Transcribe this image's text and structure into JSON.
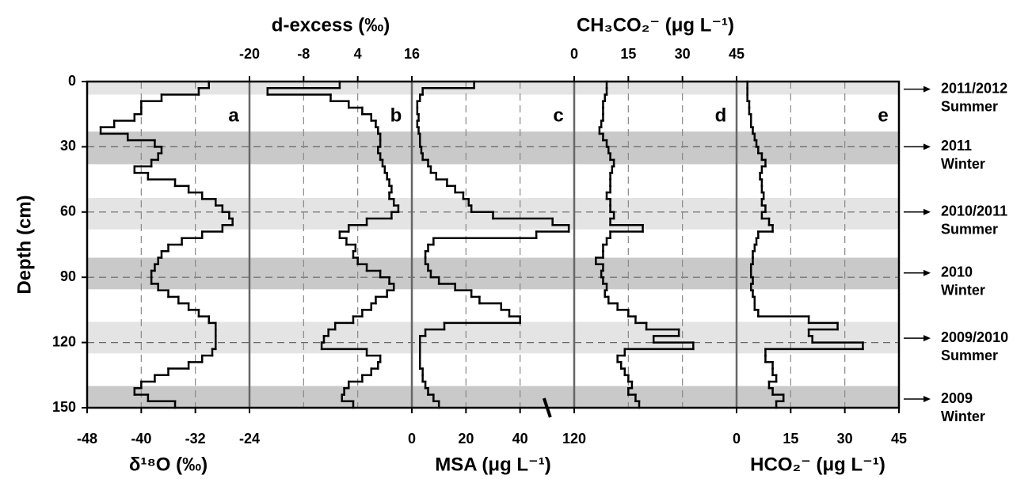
{
  "chart_data": {
    "type": "line",
    "ylabel": "Depth (cm)",
    "ylim": [
      0,
      150
    ],
    "yticks": [
      0,
      30,
      60,
      90,
      120,
      150
    ],
    "yinvert": true,
    "y": [
      0,
      3,
      6,
      9,
      12,
      15,
      18,
      21,
      24,
      27,
      30,
      33,
      36,
      39,
      42,
      45,
      48,
      51,
      54,
      57,
      60,
      63,
      66,
      69,
      72,
      75,
      78,
      81,
      84,
      87,
      90,
      93,
      96,
      99,
      102,
      105,
      108,
      111,
      114,
      117,
      120,
      123,
      126,
      129,
      132,
      135,
      138,
      141,
      144,
      147
    ],
    "bands": [
      {
        "from": 0,
        "to": 6,
        "color": "#e4e4e4"
      },
      {
        "from": 23,
        "to": 38,
        "color": "#c9c9c9"
      },
      {
        "from": 53.5,
        "to": 68,
        "color": "#e4e4e4"
      },
      {
        "from": 81,
        "to": 95.5,
        "color": "#c9c9c9"
      },
      {
        "from": 110.5,
        "to": 125,
        "color": "#e4e4e4"
      },
      {
        "from": 140,
        "to": 150,
        "color": "#c9c9c9"
      }
    ],
    "seasons": [
      {
        "depth": 3.5,
        "lines": [
          "2011/2012",
          "Summer"
        ]
      },
      {
        "depth": 30,
        "lines": [
          "2011",
          "Winter"
        ]
      },
      {
        "depth": 60,
        "lines": [
          "2010/2011",
          "Summer"
        ]
      },
      {
        "depth": 88,
        "lines": [
          "2010",
          "Winter"
        ]
      },
      {
        "depth": 118,
        "lines": [
          "2009/2010",
          "Summer"
        ]
      },
      {
        "depth": 146,
        "lines": [
          "2009",
          "Winter"
        ]
      }
    ],
    "panels": [
      {
        "letter": "a",
        "xlabel": "δ¹⁸O (‰)",
        "xaxis": "bottom",
        "xlim": [
          -48,
          -24
        ],
        "xticks": [
          -48,
          -40,
          -32,
          -24
        ],
        "color": "#000000",
        "values": [
          -30,
          -31.5,
          -37,
          -40,
          -40,
          -41,
          -44,
          -46,
          -42,
          -38,
          -37,
          -37.5,
          -38.5,
          -41,
          -39,
          -35,
          -33,
          -31,
          -29,
          -28,
          -27,
          -26.5,
          -28,
          -31,
          -34,
          -36,
          -37,
          -37.5,
          -38,
          -38.5,
          -38.5,
          -37.5,
          -36,
          -34.5,
          -33,
          -31.5,
          -30,
          -29,
          -29,
          -29,
          -29,
          -29.5,
          -31,
          -33,
          -36,
          -38,
          -40,
          -41,
          -39,
          -35
        ]
      },
      {
        "letter": "b",
        "xlabel": "d-excess (‰)",
        "xaxis": "top",
        "xlim": [
          -20,
          16
        ],
        "xticks": [
          -20,
          -8,
          4,
          16
        ],
        "color": "#000000",
        "values": [
          0,
          -16,
          -2,
          2,
          5,
          7,
          8,
          8.5,
          9,
          9,
          8.5,
          9,
          9.5,
          10,
          10.5,
          11,
          11.5,
          11,
          12,
          13,
          11.5,
          6,
          2,
          0,
          1.5,
          3.5,
          3,
          4,
          6,
          9,
          11,
          12,
          10.5,
          8,
          7,
          5,
          3,
          -1,
          -2.5,
          -3.5,
          -4,
          6,
          9,
          8.5,
          7,
          5,
          2,
          1,
          0.5,
          3
        ]
      },
      {
        "letter": "c",
        "xlabel": "MSA (μg L⁻¹)",
        "xaxis": "bottom",
        "xlim": [
          0,
          120
        ],
        "xticks": [
          0,
          20,
          40,
          120
        ],
        "xbreak": [
          60,
          120
        ],
        "color": "#000000",
        "values": [
          23,
          4,
          3,
          2,
          2,
          2.5,
          2,
          2.5,
          3,
          3,
          3.5,
          4,
          6,
          7,
          9,
          13,
          16,
          19,
          21,
          22,
          30,
          52,
          58,
          46,
          8,
          6,
          5,
          5,
          6,
          7,
          10,
          16,
          22,
          25,
          33,
          36,
          40,
          12,
          5,
          3,
          3,
          3,
          3,
          3,
          4,
          4,
          5,
          6,
          8,
          10
        ]
      },
      {
        "letter": "d",
        "xlabel": "CH₃CO₂⁻ (μg L⁻¹)",
        "xaxis": "top",
        "xlim": [
          0,
          45
        ],
        "xticks": [
          0,
          15,
          30,
          45
        ],
        "color": "#000000",
        "values": [
          9,
          9,
          8.5,
          8,
          8,
          8,
          7.5,
          7,
          8,
          9,
          9.5,
          10,
          11,
          10.5,
          10,
          10,
          10,
          9,
          10,
          10,
          11,
          10,
          19,
          10,
          9,
          8,
          8,
          6,
          8,
          7.5,
          8,
          9,
          8.5,
          9.5,
          12,
          15,
          17,
          20,
          29,
          22,
          33,
          14,
          12,
          13,
          14,
          15,
          16,
          15,
          17,
          18
        ]
      },
      {
        "letter": "e",
        "xlabel": "HCO₂⁻ (μg L⁻¹)",
        "xaxis": "bottom",
        "xlim": [
          0,
          45
        ],
        "xticks": [
          0,
          15,
          30,
          45
        ],
        "color": "#000000",
        "values": [
          3,
          3,
          3,
          3.5,
          3.5,
          4,
          4,
          4.5,
          5,
          5.5,
          6,
          7,
          8,
          7,
          6.5,
          7,
          7,
          7.5,
          7,
          8,
          7,
          9,
          10,
          6,
          5.5,
          5,
          4.5,
          4.5,
          4,
          4,
          4.5,
          4,
          4.5,
          5,
          5,
          6,
          20,
          28,
          20,
          21,
          35,
          8,
          8,
          10,
          10,
          11,
          9,
          10,
          13,
          11
        ]
      }
    ]
  }
}
